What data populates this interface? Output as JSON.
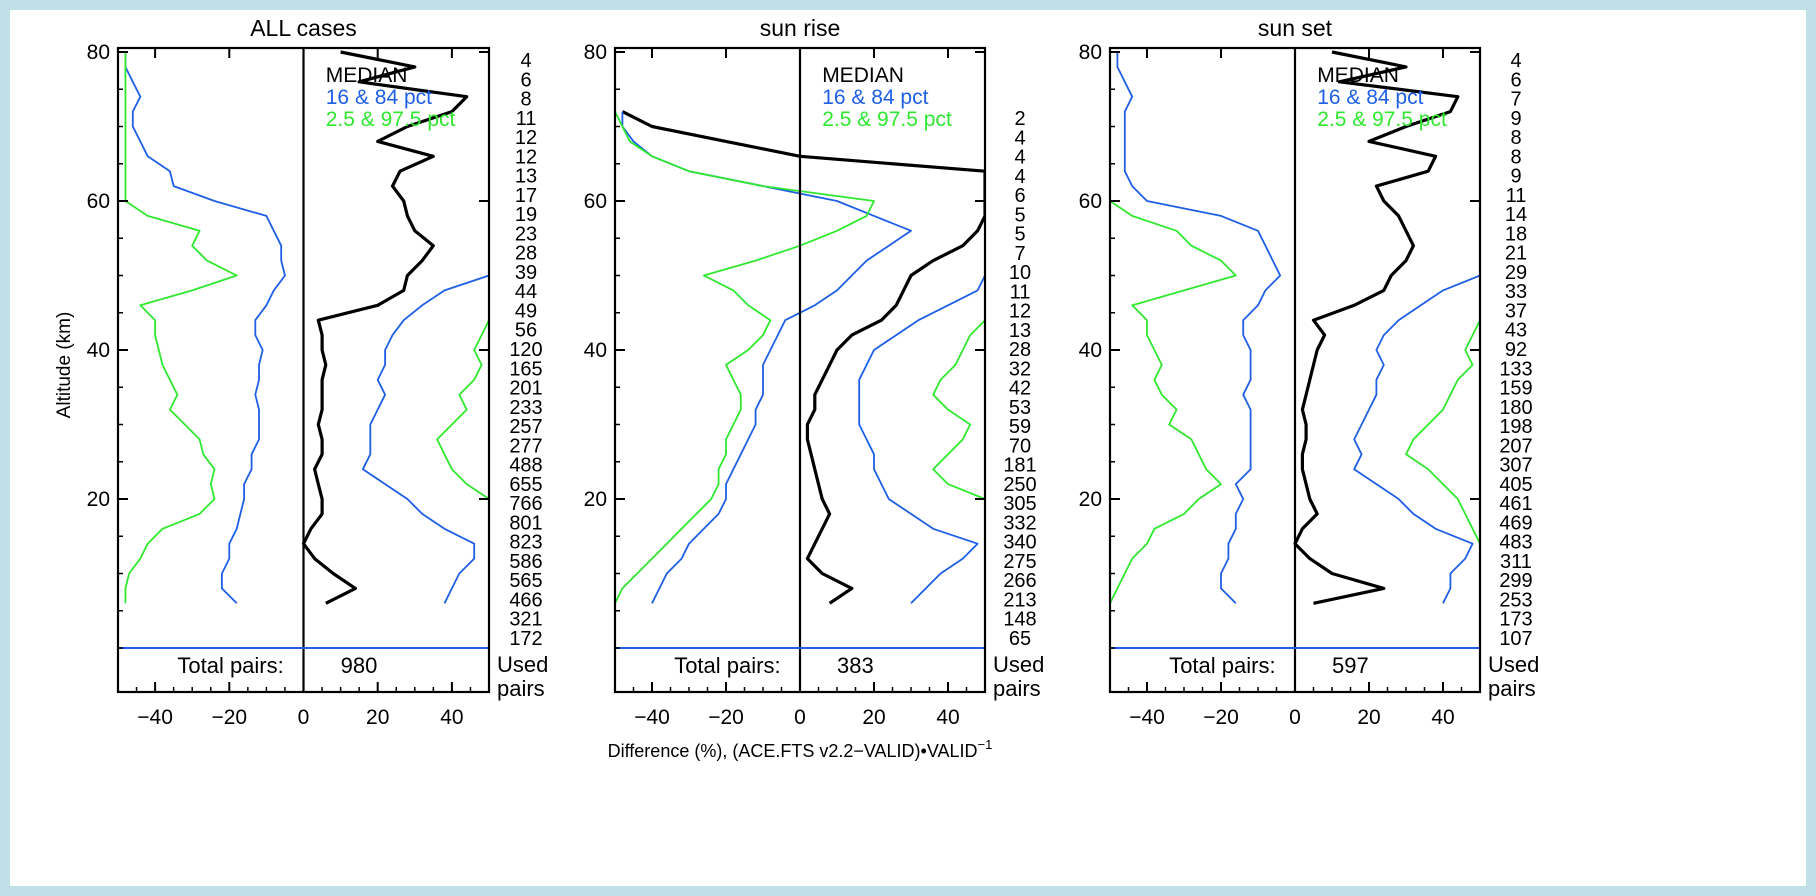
{
  "figure": {
    "y_axis_label": "Altitude (km)",
    "x_axis_label_main": "Difference (%), (ACE.FTS v2.2−VALID)•VALID",
    "x_axis_label_sup": "−1",
    "used_pairs_label_1": "Used",
    "used_pairs_label_2": "pairs",
    "total_pairs_label": "Total pairs:",
    "colors": {
      "median": "#000000",
      "pct16_84": "#1e5fe6",
      "pct2_97": "#2fe82f",
      "axis": "#000000",
      "background": "#bfe0e6"
    }
  },
  "chart_data": [
    {
      "type": "line",
      "title": "ALL cases",
      "xlabel": "",
      "ylabel": "Altitude (km)",
      "xlim": [
        -50,
        50
      ],
      "ylim": [
        0,
        80
      ],
      "xticks": [
        -40,
        -20,
        0,
        20,
        40
      ],
      "yticks": [
        20,
        40,
        60,
        80
      ],
      "total_pairs": "980",
      "legend": [
        {
          "label": "MEDIAN",
          "color": "#000000"
        },
        {
          "label": "16 & 84 pct",
          "color": "#1e5fe6"
        },
        {
          "label": "2.5 & 97.5 pct",
          "color": "#2fe82f"
        }
      ],
      "used_pairs": [
        "4",
        "6",
        "8",
        "11",
        "12",
        "12",
        "13",
        "17",
        "19",
        "23",
        "28",
        "39",
        "44",
        "49",
        "56",
        "120",
        "165",
        "201",
        "233",
        "257",
        "277",
        "488",
        "655",
        "766",
        "801",
        "823",
        "586",
        "565",
        "466",
        "321",
        "172"
      ],
      "altitude": [
        6,
        8,
        10,
        12,
        14,
        16,
        18,
        20,
        22,
        24,
        26,
        28,
        30,
        32,
        34,
        36,
        38,
        40,
        42,
        44,
        46,
        48,
        50,
        52,
        54,
        56,
        58,
        60,
        62,
        64,
        66,
        68,
        70,
        72,
        74,
        76,
        78,
        80
      ],
      "series": [
        {
          "name": "MEDIAN",
          "color": "#000000",
          "width": 3.2,
          "x": [
            6,
            14,
            8,
            3,
            0,
            2,
            5,
            5,
            4,
            3,
            5,
            5,
            4,
            5,
            5,
            5,
            6,
            5,
            5,
            4,
            20,
            27,
            28,
            32,
            35,
            30,
            28,
            27,
            24,
            26,
            35,
            20,
            28,
            40,
            44,
            15,
            30,
            10
          ]
        },
        {
          "name": "16 pct",
          "color": "#1e5fe6",
          "width": 1.8,
          "x": [
            -18,
            -22,
            -22,
            -20,
            -20,
            -18,
            -17,
            -16,
            -16,
            -14,
            -14,
            -12,
            -12,
            -12,
            -13,
            -12,
            -12,
            -11,
            -13,
            -13,
            -10,
            -8,
            -5,
            -6,
            -6,
            -8,
            -10,
            -24,
            -35,
            -36,
            -42,
            -44,
            -46,
            -46,
            -44,
            -46,
            -48,
            -48
          ]
        },
        {
          "name": "84 pct",
          "color": "#1e5fe6",
          "width": 1.8,
          "x": [
            38,
            40,
            42,
            46,
            46,
            38,
            32,
            28,
            22,
            16,
            18,
            18,
            18,
            20,
            22,
            20,
            22,
            22,
            24,
            27,
            32,
            38,
            50,
            50,
            50,
            50,
            50,
            50,
            50,
            50,
            50,
            50,
            50,
            50,
            50,
            50,
            50,
            50
          ]
        },
        {
          "name": "2.5 pct",
          "color": "#2fe82f",
          "width": 1.8,
          "x": [
            -48,
            -48,
            -47,
            -44,
            -42,
            -38,
            -28,
            -24,
            -25,
            -24,
            -27,
            -28,
            -32,
            -36,
            -34,
            -36,
            -38,
            -39,
            -40,
            -40,
            -44,
            -30,
            -18,
            -26,
            -30,
            -28,
            -42,
            -48,
            -48,
            -48,
            -48,
            -48,
            -48,
            -48,
            -48,
            -48,
            -48,
            -48
          ]
        },
        {
          "name": "97.5 pct",
          "color": "#2fe82f",
          "width": 1.8,
          "x": [
            50,
            50,
            50,
            50,
            50,
            50,
            50,
            50,
            44,
            40,
            38,
            36,
            40,
            44,
            42,
            46,
            48,
            46,
            48,
            50,
            50,
            50,
            50,
            50,
            50,
            50,
            50,
            50,
            50,
            50,
            50,
            50,
            50,
            50,
            50,
            50,
            50,
            50
          ]
        }
      ]
    },
    {
      "type": "line",
      "title": "sun rise",
      "xlabel": "Difference (%), (ACE.FTS v2.2−VALID)•VALID⁻¹",
      "ylabel": "",
      "xlim": [
        -50,
        50
      ],
      "ylim": [
        0,
        80
      ],
      "xticks": [
        -40,
        -20,
        0,
        20,
        40
      ],
      "yticks": [
        20,
        40,
        60,
        80
      ],
      "total_pairs": "383",
      "legend": [
        {
          "label": "MEDIAN",
          "color": "#000000"
        },
        {
          "label": "16 & 84 pct",
          "color": "#1e5fe6"
        },
        {
          "label": "2.5 & 97.5 pct",
          "color": "#2fe82f"
        }
      ],
      "used_pairs": [
        "2",
        "4",
        "4",
        "4",
        "6",
        "5",
        "5",
        "7",
        "10",
        "11",
        "12",
        "13",
        "28",
        "32",
        "42",
        "53",
        "59",
        "70",
        "181",
        "250",
        "305",
        "332",
        "340",
        "275",
        "266",
        "213",
        "148",
        "65"
      ],
      "altitude": [
        6,
        8,
        10,
        12,
        14,
        16,
        18,
        20,
        22,
        24,
        26,
        28,
        30,
        32,
        34,
        36,
        38,
        40,
        42,
        44,
        46,
        48,
        50,
        52,
        54,
        56,
        58,
        60,
        62,
        64,
        66,
        68,
        70,
        72
      ],
      "series": [
        {
          "name": "MEDIAN",
          "color": "#000000",
          "width": 3.2,
          "x": [
            8,
            14,
            6,
            2,
            4,
            6,
            8,
            6,
            5,
            4,
            3,
            2,
            2,
            4,
            4,
            6,
            8,
            10,
            14,
            22,
            26,
            28,
            30,
            36,
            44,
            48,
            50,
            50,
            50,
            50,
            0,
            -20,
            -40,
            -48
          ]
        },
        {
          "name": "16 pct",
          "color": "#1e5fe6",
          "width": 1.8,
          "x": [
            -40,
            -38,
            -36,
            -32,
            -30,
            -26,
            -22,
            -20,
            -20,
            -18,
            -16,
            -14,
            -12,
            -12,
            -10,
            -10,
            -10,
            -8,
            -6,
            -4,
            4,
            10,
            14,
            18,
            24,
            30,
            20,
            10,
            -10,
            -30,
            -40,
            -45,
            -48,
            -48
          ]
        },
        {
          "name": "84 pct",
          "color": "#1e5fe6",
          "width": 1.8,
          "x": [
            30,
            34,
            38,
            44,
            48,
            36,
            30,
            24,
            22,
            20,
            20,
            18,
            16,
            16,
            16,
            16,
            18,
            20,
            26,
            32,
            40,
            48,
            50,
            50,
            50,
            50,
            50,
            50,
            50,
            50,
            50,
            50,
            50,
            50
          ]
        },
        {
          "name": "2.5 pct",
          "color": "#2fe82f",
          "width": 1.8,
          "x": [
            -50,
            -48,
            -44,
            -40,
            -36,
            -32,
            -28,
            -24,
            -22,
            -22,
            -20,
            -20,
            -18,
            -16,
            -16,
            -18,
            -20,
            -14,
            -10,
            -8,
            -14,
            -18,
            -26,
            -12,
            0,
            10,
            18,
            20,
            -10,
            -30,
            -40,
            -46,
            -48,
            -50
          ]
        },
        {
          "name": "97.5 pct",
          "color": "#2fe82f",
          "width": 1.8,
          "x": [
            50,
            50,
            50,
            50,
            50,
            50,
            50,
            50,
            40,
            36,
            40,
            44,
            46,
            40,
            36,
            38,
            42,
            44,
            46,
            50,
            50,
            50,
            50,
            50,
            50,
            50,
            50,
            50,
            50,
            50,
            50,
            50,
            50,
            50
          ]
        }
      ]
    },
    {
      "type": "line",
      "title": "sun set",
      "xlabel": "",
      "ylabel": "",
      "xlim": [
        -50,
        50
      ],
      "ylim": [
        0,
        80
      ],
      "xticks": [
        -40,
        -20,
        0,
        20,
        40
      ],
      "yticks": [
        20,
        40,
        60,
        80
      ],
      "total_pairs": "597",
      "legend": [
        {
          "label": "MEDIAN",
          "color": "#000000"
        },
        {
          "label": "16 & 84 pct",
          "color": "#1e5fe6"
        },
        {
          "label": "2.5 & 97.5 pct",
          "color": "#2fe82f"
        }
      ],
      "used_pairs": [
        "4",
        "6",
        "7",
        "9",
        "8",
        "8",
        "9",
        "11",
        "14",
        "18",
        "21",
        "29",
        "33",
        "37",
        "43",
        "92",
        "133",
        "159",
        "180",
        "198",
        "207",
        "307",
        "405",
        "461",
        "469",
        "483",
        "311",
        "299",
        "253",
        "173",
        "107"
      ],
      "altitude": [
        6,
        8,
        10,
        12,
        14,
        16,
        18,
        20,
        22,
        24,
        26,
        28,
        30,
        32,
        34,
        36,
        38,
        40,
        42,
        44,
        46,
        48,
        50,
        52,
        54,
        56,
        58,
        60,
        62,
        64,
        66,
        68,
        70,
        72,
        74,
        76,
        78,
        80
      ],
      "series": [
        {
          "name": "MEDIAN",
          "color": "#000000",
          "width": 3.2,
          "x": [
            5,
            24,
            10,
            4,
            0,
            2,
            6,
            4,
            3,
            2,
            2,
            3,
            3,
            2,
            3,
            4,
            5,
            6,
            8,
            5,
            16,
            24,
            26,
            30,
            32,
            30,
            28,
            24,
            22,
            36,
            38,
            20,
            30,
            42,
            44,
            12,
            30,
            10
          ]
        },
        {
          "name": "16 pct",
          "color": "#1e5fe6",
          "width": 1.8,
          "x": [
            -16,
            -20,
            -20,
            -18,
            -18,
            -16,
            -16,
            -14,
            -16,
            -12,
            -12,
            -12,
            -12,
            -12,
            -14,
            -12,
            -12,
            -12,
            -14,
            -14,
            -10,
            -8,
            -4,
            -6,
            -8,
            -10,
            -20,
            -40,
            -44,
            -46,
            -46,
            -46,
            -46,
            -46,
            -44,
            -46,
            -48,
            -48
          ]
        },
        {
          "name": "84 pct",
          "color": "#1e5fe6",
          "width": 1.8,
          "x": [
            40,
            42,
            42,
            46,
            48,
            38,
            32,
            28,
            22,
            16,
            18,
            16,
            18,
            20,
            22,
            22,
            24,
            22,
            24,
            28,
            34,
            40,
            50,
            50,
            50,
            50,
            50,
            50,
            50,
            50,
            50,
            50,
            50,
            50,
            50,
            50,
            50,
            50
          ]
        },
        {
          "name": "2.5 pct",
          "color": "#2fe82f",
          "width": 1.8,
          "x": [
            -50,
            -48,
            -46,
            -44,
            -40,
            -38,
            -30,
            -26,
            -20,
            -24,
            -26,
            -28,
            -34,
            -32,
            -36,
            -38,
            -36,
            -38,
            -40,
            -40,
            -44,
            -30,
            -16,
            -20,
            -28,
            -32,
            -44,
            -50,
            -50,
            -50,
            -50,
            -50,
            -50,
            -50,
            -50,
            -50,
            -50,
            -50
          ]
        },
        {
          "name": "97.5 pct",
          "color": "#2fe82f",
          "width": 1.8,
          "x": [
            50,
            50,
            50,
            50,
            50,
            48,
            46,
            44,
            40,
            36,
            30,
            32,
            36,
            40,
            42,
            44,
            48,
            46,
            48,
            50,
            50,
            50,
            50,
            50,
            50,
            50,
            50,
            50,
            50,
            50,
            50,
            50,
            50,
            50,
            50,
            50,
            50,
            50
          ]
        }
      ]
    }
  ]
}
